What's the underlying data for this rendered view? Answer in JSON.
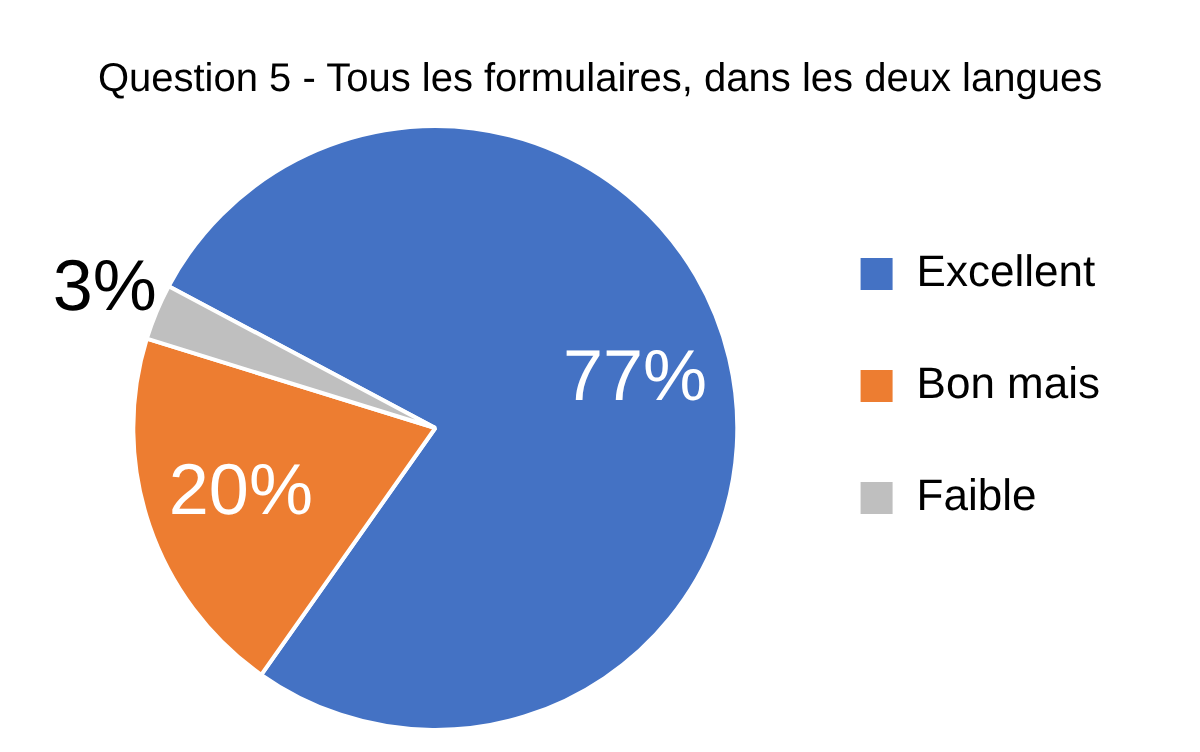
{
  "chart_data": {
    "type": "pie",
    "title": "Question 5 - Tous les formulaires, dans les deux langues",
    "categories": [
      "Excellent",
      "Bon mais",
      "Faible"
    ],
    "values": [
      77,
      20,
      3
    ],
    "colors": [
      "#4472c4",
      "#ed7d31",
      "#bfbfbf"
    ],
    "value_labels": [
      "77%",
      "20%",
      "3%"
    ],
    "legend": "right"
  }
}
